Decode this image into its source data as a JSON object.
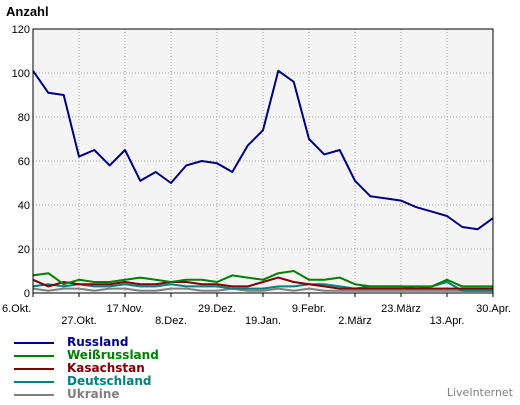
{
  "chart_data": {
    "type": "line",
    "ylabel": "Anzahl",
    "ylim": [
      0,
      120
    ],
    "yticks": [
      0,
      20,
      40,
      60,
      80,
      100,
      120
    ],
    "grid": true,
    "legend_position": "bottom-left",
    "x_tick_labels_row1": [
      "6.Okt.",
      "17.Nov.",
      "29.Dez.",
      "9.Febr.",
      "23.März",
      "30.Apr."
    ],
    "x_tick_labels_row2": [
      "27.Okt.",
      "8.Dez.",
      "19.Jan.",
      "2.März",
      "13.Apr."
    ],
    "x_count": 31,
    "series": [
      {
        "name": "Russland",
        "color": "#000080",
        "values": [
          101,
          91,
          90,
          62,
          65,
          58,
          65,
          51,
          55,
          50,
          58,
          60,
          59,
          55,
          67,
          74,
          101,
          96,
          70,
          63,
          65,
          51,
          44,
          43,
          42,
          39,
          37,
          35,
          30,
          29,
          34
        ]
      },
      {
        "name": "Weißrussland",
        "color": "#008000",
        "values": [
          8,
          9,
          4,
          6,
          5,
          5,
          6,
          7,
          6,
          5,
          6,
          6,
          5,
          8,
          7,
          6,
          9,
          10,
          6,
          6,
          7,
          4,
          3,
          3,
          3,
          3,
          3,
          6,
          3,
          3,
          3
        ]
      },
      {
        "name": "Kasachstan",
        "color": "#800000",
        "values": [
          6,
          3,
          5,
          4,
          4,
          4,
          5,
          4,
          4,
          5,
          5,
          4,
          4,
          3,
          3,
          5,
          7,
          5,
          4,
          3,
          2,
          2,
          2,
          2,
          2,
          2,
          2,
          2,
          2,
          2,
          2
        ]
      },
      {
        "name": "Deutschland",
        "color": "#008080",
        "values": [
          3,
          4,
          3,
          4,
          3,
          3,
          4,
          3,
          3,
          4,
          3,
          3,
          3,
          2,
          2,
          2,
          3,
          3,
          4,
          4,
          3,
          2,
          3,
          3,
          3,
          2,
          3,
          5,
          1,
          1,
          1
        ]
      },
      {
        "name": "Ukraine",
        "color": "#808080",
        "values": [
          2,
          1,
          2,
          2,
          1,
          2,
          2,
          1,
          1,
          2,
          2,
          1,
          1,
          2,
          1,
          1,
          2,
          1,
          2,
          1,
          1,
          1,
          1,
          1,
          1,
          1,
          1,
          1,
          1,
          1,
          1
        ]
      }
    ]
  },
  "credit": "LiveInternet"
}
